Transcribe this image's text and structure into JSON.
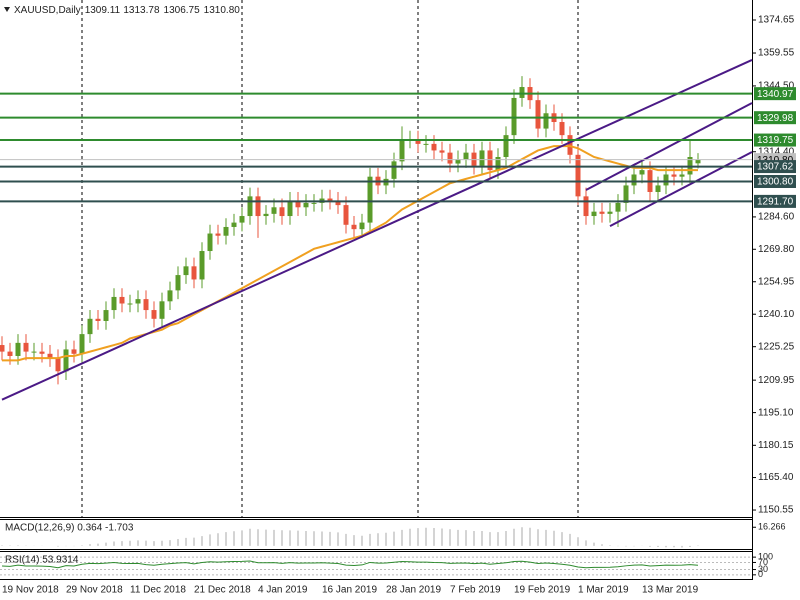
{
  "chart_data": {
    "type": "candlestick",
    "title": "XAUUSD,Daily",
    "header_values": [
      "1309.11",
      "1313.78",
      "1306.75",
      "1310.80"
    ],
    "up_color": "#5a9b2a",
    "down_color": "#e8553d",
    "ma_color": "#f0a020",
    "trendline_color": "#4b1a86",
    "xlim": [
      -0.25,
      93.75
    ],
    "ylim": [
      1147.36,
      1383.8
    ],
    "yticks": [
      1374.65,
      1359.55,
      {
        "value": 1344.5,
        "label": "1344.50"
      },
      {
        "value": 1314.4,
        "label": "1314.40"
      },
      {
        "value": 1284.6,
        "label": "1284.60"
      },
      {
        "value": 1269.8,
        "label": "1269.80"
      },
      1254.95,
      {
        "value": 1240.1,
        "label": "1240.10"
      },
      1225.25,
      1209.95,
      {
        "value": 1195.1,
        "label": "1195.10"
      },
      1180.15,
      {
        "value": 1165.4,
        "label": "1165.40"
      },
      1150.55
    ],
    "categories": [
      "19 Nov 2018",
      null,
      null,
      null,
      null,
      null,
      null,
      null,
      "29 Nov 2018",
      null,
      null,
      null,
      null,
      null,
      null,
      null,
      "11 Dec 2018",
      null,
      null,
      null,
      null,
      null,
      null,
      null,
      "21 Dec 2018",
      null,
      null,
      null,
      null,
      null,
      null,
      null,
      "4 Jan 2019",
      null,
      null,
      null,
      null,
      null,
      null,
      null,
      "16 Jan 2019",
      null,
      null,
      null,
      null,
      null,
      null,
      null,
      "28 Jan 2019",
      null,
      null,
      null,
      null,
      null,
      null,
      null,
      "7 Feb 2019",
      null,
      null,
      null,
      null,
      null,
      null,
      null,
      "19 Feb 2019",
      null,
      null,
      null,
      null,
      null,
      null,
      null,
      "1 Mar 2019",
      null,
      null,
      null,
      null,
      null,
      null,
      null,
      "13 Mar 2019",
      null,
      null,
      null,
      null,
      null,
      null,
      null
    ],
    "open": [
      1226,
      1223,
      1221,
      1227,
      1223,
      1223,
      1222,
      1220,
      1214,
      1224,
      1222,
      1231,
      1238,
      1237,
      1242,
      1248,
      1245,
      1245,
      1247,
      1242,
      1238,
      1246,
      1251,
      1258,
      1262,
      1256,
      1269,
      1277,
      1276,
      1280,
      1282,
      1285,
      1294,
      1285,
      1286,
      1289,
      1285,
      1292,
      1289,
      1291,
      1291,
      1293,
      1292,
      1290,
      1281,
      1279,
      1282,
      1303,
      1299,
      1302,
      1310,
      1320,
      1320,
      1318,
      1318,
      1315,
      1314,
      1309,
      1311,
      1314,
      1308,
      1315,
      1306,
      1312,
      1322,
      1339,
      1344,
      1338,
      1325,
      1332,
      1328,
      1322,
      1313,
      1294,
      1285,
      1287,
      1286,
      1287,
      1291,
      1299,
      1304,
      1306,
      1296,
      1299,
      1304,
      1303,
      1304,
      1309.11
    ],
    "high": [
      1230,
      1227,
      1231,
      1231,
      1227,
      1227,
      1226,
      1224,
      1228,
      1228,
      1235,
      1242,
      1242,
      1246,
      1252,
      1252,
      1249,
      1251,
      1251,
      1246,
      1250,
      1255,
      1262,
      1266,
      1266,
      1273,
      1281,
      1281,
      1284,
      1286,
      1289,
      1298,
      1298,
      1290,
      1293,
      1293,
      1296,
      1296,
      1295,
      1295,
      1297,
      1297,
      1296,
      1294,
      1285,
      1286,
      1307,
      1307,
      1306,
      1314,
      1326,
      1324,
      1324,
      1322,
      1322,
      1319,
      1318,
      1315,
      1318,
      1318,
      1319,
      1319,
      1316,
      1326,
      1343,
      1349,
      1348,
      1342,
      1336,
      1336,
      1332,
      1326,
      1317,
      1298,
      1291,
      1291,
      1291,
      1295,
      1303,
      1308,
      1310,
      1310,
      1303,
      1308,
      1308,
      1308,
      1320,
      1313.78
    ],
    "low": [
      1219,
      1217,
      1217,
      1219,
      1219,
      1218,
      1216,
      1208,
      1210,
      1218,
      1218,
      1227,
      1233,
      1233,
      1238,
      1241,
      1241,
      1241,
      1238,
      1234,
      1234,
      1242,
      1247,
      1254,
      1252,
      1252,
      1265,
      1272,
      1272,
      1276,
      1278,
      1281,
      1275,
      1281,
      1282,
      1281,
      1281,
      1285,
      1285,
      1287,
      1287,
      1288,
      1286,
      1277,
      1275,
      1275,
      1278,
      1295,
      1295,
      1298,
      1306,
      1316,
      1314,
      1314,
      1311,
      1310,
      1305,
      1305,
      1307,
      1304,
      1304,
      1302,
      1302,
      1308,
      1318,
      1335,
      1334,
      1321,
      1321,
      1324,
      1318,
      1309,
      1290,
      1281,
      1281,
      1282,
      1282,
      1280,
      1287,
      1295,
      1300,
      1292,
      1292,
      1295,
      1299,
      1299,
      1300,
      1306.75
    ],
    "close": [
      1223,
      1221,
      1227,
      1223,
      1223,
      1222,
      1220,
      1214,
      1224,
      1222,
      1231,
      1238,
      1237,
      1242,
      1248,
      1245,
      1245,
      1247,
      1242,
      1238,
      1246,
      1251,
      1258,
      1262,
      1256,
      1269,
      1277,
      1276,
      1280,
      1282,
      1285,
      1294,
      1285,
      1286,
      1289,
      1285,
      1292,
      1289,
      1291,
      1291,
      1293,
      1292,
      1290,
      1281,
      1279,
      1282,
      1303,
      1299,
      1302,
      1310,
      1320,
      1320,
      1318,
      1318,
      1315,
      1314,
      1309,
      1311,
      1314,
      1308,
      1315,
      1306,
      1312,
      1322,
      1339,
      1344,
      1338,
      1325,
      1332,
      1328,
      1322,
      1313,
      1294,
      1285,
      1287,
      1286,
      1287,
      1291,
      1299,
      1304,
      1306,
      1296,
      1299,
      1304,
      1303,
      1304,
      1312,
      1310.8
    ],
    "ma": [
      1219,
      1219,
      1219,
      1220,
      1220,
      1220,
      1220,
      1220,
      1221,
      1221,
      1222,
      1223,
      1224,
      1225,
      1226,
      1227,
      1229,
      1230,
      1231,
      1232,
      1233,
      1235,
      1236,
      1238,
      1240,
      1242,
      1244,
      1246,
      1248,
      1250,
      1252,
      1254,
      1256,
      1258,
      1260,
      1262,
      1264,
      1266,
      1268,
      1270,
      1271,
      1272,
      1273,
      1274,
      1275,
      1276,
      1278,
      1280,
      1282,
      1285,
      1288,
      1290,
      1292,
      1294,
      1296,
      1298,
      1300,
      1301,
      1302,
      1303,
      1304,
      1305,
      1306,
      1307,
      1309,
      1311,
      1313,
      1315,
      1316,
      1317,
      1317,
      1317,
      1316,
      1314,
      1312,
      1311,
      1310,
      1309,
      1308,
      1307,
      1307,
      1307,
      1306,
      1306,
      1306,
      1306,
      1306,
      1306
    ],
    "trendlines": [
      {
        "x": [
          0,
          93.75
        ],
        "y": [
          1201,
          1356.4
        ]
      },
      {
        "x": [
          73,
          93.75
        ],
        "y": [
          1296.9,
          1336.7
        ]
      },
      {
        "x": [
          76,
          93.75
        ],
        "y": [
          1280.4,
          1314.3
        ]
      }
    ],
    "period_separators": [
      10,
      30,
      52,
      72
    ],
    "levels": [
      {
        "value": 1340.97,
        "label": "1340.97",
        "color": "#2e8b2e"
      },
      {
        "value": 1329.98,
        "label": "1329.98",
        "color": "#2e8b2e"
      },
      {
        "value": 1319.75,
        "label": "1319.75",
        "color": "#2e8b2e"
      },
      {
        "value": 1307.62,
        "label": "1307.62",
        "color": "#2f4f4f"
      },
      {
        "value": 1300.8,
        "label": "1300.80",
        "color": "#2f4f4f"
      },
      {
        "value": 1291.7,
        "label": "1291.70",
        "color": "#2f4f4f"
      }
    ],
    "current_price": {
      "value": 1310.8,
      "label": "1310.80",
      "color": "#c0c0c0"
    },
    "indicators": [
      {
        "type": "histogram",
        "label": "MACD(12,26,9) 0.364 -1.703",
        "color": "#a8a8a8",
        "ylim": [
          -2.71,
          22.59
        ],
        "yticks": [
          16.266
        ],
        "values": [
          0.5,
          0.3,
          0.4,
          0.2,
          0.1,
          0.1,
          0,
          -0.5,
          -0.2,
          -0.2,
          0.5,
          1.5,
          2,
          2.8,
          3.8,
          4.2,
          4.5,
          4.8,
          4.6,
          4.2,
          4.5,
          5,
          6,
          7,
          7.2,
          8.5,
          10,
          11,
          12,
          12.8,
          13.5,
          15,
          14.5,
          14.2,
          14,
          13.6,
          13.5,
          13.3,
          13,
          12.8,
          12.6,
          12.2,
          11.8,
          10.5,
          9.4,
          8.8,
          10.5,
          11,
          11.5,
          12.5,
          14,
          15,
          15.5,
          15.8,
          15.6,
          15.2,
          14.5,
          14,
          13.8,
          13,
          13,
          12,
          12,
          13,
          15,
          16.266,
          15.8,
          14.5,
          14,
          13.2,
          12,
          10.5,
          7.5,
          4.8,
          2.8,
          1.4,
          0.5,
          -0.2,
          -0.4,
          -0.3,
          -0.1,
          -0.8,
          -1,
          -1.2,
          -1.2,
          -1.4,
          -1,
          0.364
        ]
      },
      {
        "type": "line",
        "label": "RSI(14) 53.9314",
        "color": "#2e8b2e",
        "ylim": [
          -23.5,
          129
        ],
        "yticks": [
          100,
          70,
          30,
          0
        ],
        "values": [
          50,
          48,
          55,
          50,
          50,
          49,
          47,
          40,
          52,
          50,
          60,
          65,
          63,
          66,
          70,
          65,
          64,
          65,
          58,
          54,
          60,
          63,
          67,
          69,
          62,
          70,
          74,
          72,
          74,
          75,
          76,
          78,
          68,
          68,
          69,
          65,
          69,
          66,
          67,
          67,
          68,
          66,
          64,
          55,
          53,
          56,
          70,
          66,
          67,
          71,
          75,
          74,
          72,
          72,
          70,
          69,
          65,
          66,
          67,
          63,
          66,
          60,
          64,
          68,
          75,
          77,
          72,
          64,
          67,
          64,
          60,
          54,
          44,
          40,
          42,
          42,
          43,
          46,
          51,
          55,
          56,
          50,
          52,
          55,
          54,
          55,
          58,
          53.9314
        ]
      }
    ]
  }
}
